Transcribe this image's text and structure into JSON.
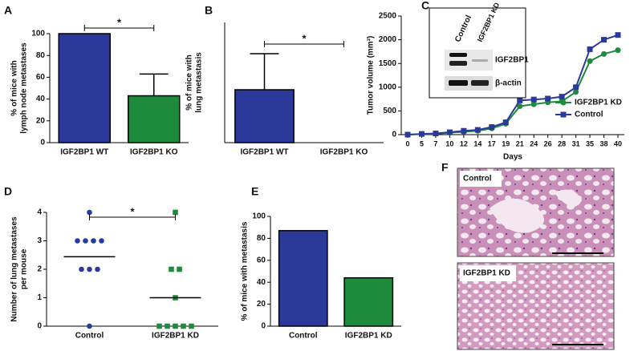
{
  "chart_data": [
    {
      "type": "bar",
      "label": "A",
      "ylabel": [
        "% of mice with",
        "lymph node metastases"
      ],
      "categories": [
        "IGF2BP1 WT",
        "IGF2BP1 KO"
      ],
      "values": [
        100,
        43
      ],
      "errors": [
        null,
        20
      ],
      "colors": [
        "#2b3a9a",
        "#1d8a3c"
      ],
      "ylim": [
        0,
        100
      ],
      "yticks": [
        0,
        20,
        40,
        60,
        80,
        100
      ],
      "significance": "*"
    },
    {
      "type": "bar",
      "label": "B",
      "ylabel": [
        "% of mice with",
        "lung metastasis"
      ],
      "categories": [
        "IGF2BP1 WT",
        "IGF2BP1 KO"
      ],
      "values": [
        22,
        0
      ],
      "errors": [
        15,
        null
      ],
      "colors": [
        "#2b3a9a",
        "#1d8a3c"
      ],
      "ylim": [
        0,
        50
      ],
      "significance": "*"
    },
    {
      "type": "line",
      "label": "C",
      "ylabel": "Tumor volume (mm³)",
      "xlabel": "Days",
      "categories": [
        "0",
        "5",
        "7",
        "10",
        "12",
        "14",
        "17",
        "19",
        "21",
        "24",
        "26",
        "28",
        "31",
        "35",
        "38",
        "40"
      ],
      "series": [
        {
          "name": "IGF2BP1 KD",
          "color": "#1d8a3c",
          "marker": "circle",
          "values": [
            0,
            10,
            20,
            40,
            60,
            80,
            130,
            230,
            600,
            640,
            680,
            700,
            900,
            1550,
            1700,
            1780
          ]
        },
        {
          "name": "Control",
          "color": "#2b3a9a",
          "marker": "square",
          "values": [
            0,
            15,
            25,
            50,
            80,
            100,
            160,
            260,
            720,
            740,
            760,
            800,
            1000,
            1800,
            2000,
            2100
          ]
        }
      ],
      "ylim": [
        0,
        2500
      ],
      "yticks": [
        0,
        500,
        1000,
        1500,
        2000,
        2500
      ],
      "inset": {
        "lanes": [
          "Control",
          "IGF2BP1 KD"
        ],
        "bands": [
          "IGF2BP1",
          "β-actin"
        ]
      }
    },
    {
      "type": "dot",
      "label": "D",
      "ylabel": [
        "Number of lung metastases",
        "per mouse"
      ],
      "categories": [
        "Control",
        "IGF2BP1 KD"
      ],
      "points": [
        [
          4,
          3,
          3,
          3,
          3,
          2,
          2,
          2,
          0
        ],
        [
          4,
          2,
          2,
          1,
          0,
          0,
          0,
          0,
          0
        ]
      ],
      "means": [
        2.44,
        1.0
      ],
      "colors": [
        "#2b3a9a",
        "#1d8a3c"
      ],
      "markers": [
        "circle",
        "square"
      ],
      "ylim": [
        0,
        4
      ],
      "yticks": [
        0,
        1,
        2,
        3,
        4
      ],
      "significance": "*"
    },
    {
      "type": "bar",
      "label": "E",
      "ylabel": [
        "% of mice with metastasis"
      ],
      "categories": [
        "Control",
        "IGF2BP1 KD"
      ],
      "values": [
        87,
        44
      ],
      "colors": [
        "#2b3a9a",
        "#1d8a3c"
      ],
      "ylim": [
        0,
        100
      ],
      "yticks": [
        0,
        20,
        40,
        60,
        80,
        100
      ]
    }
  ],
  "micrographs": {
    "label": "F",
    "panels": [
      "Control",
      "IGF2BP1 KD"
    ]
  }
}
